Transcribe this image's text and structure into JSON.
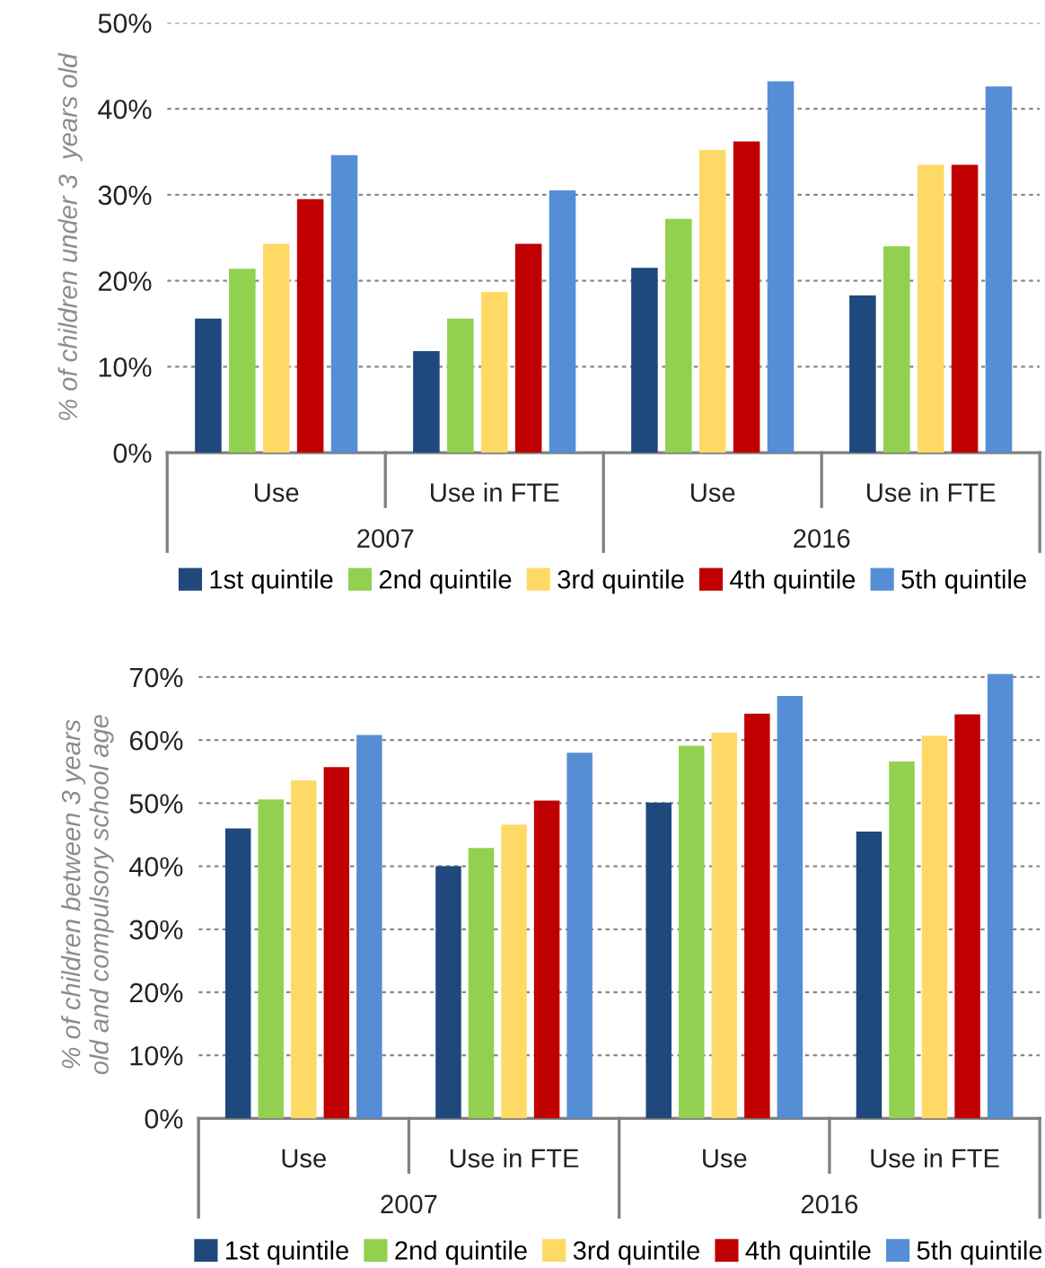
{
  "chart_data": [
    {
      "type": "bar",
      "ylabel": "% of children under 3  years old",
      "categories": [
        "Use",
        "Use in FTE",
        "Use",
        "Use in FTE"
      ],
      "annotations": [
        "2007",
        "2016"
      ],
      "series": [
        {
          "name": "1st quintile",
          "color": "#1f497d",
          "values": [
            15.6,
            11.8,
            21.5,
            18.3
          ]
        },
        {
          "name": "2nd quintile",
          "color": "#92d050",
          "values": [
            21.4,
            15.6,
            27.2,
            24.0
          ]
        },
        {
          "name": "3rd quintile",
          "color": "#ffd966",
          "values": [
            24.3,
            18.7,
            35.2,
            33.5
          ]
        },
        {
          "name": "4th quintile",
          "color": "#c00000",
          "values": [
            29.5,
            24.3,
            36.2,
            33.5
          ]
        },
        {
          "name": "5th quintile",
          "color": "#558ed5",
          "values": [
            34.6,
            30.5,
            43.2,
            42.6
          ]
        }
      ],
      "ylim": [
        0,
        50
      ],
      "yticks": [
        {
          "value": 0,
          "label": "0%"
        },
        {
          "value": 10,
          "label": "10%"
        },
        {
          "value": 20,
          "label": "20%"
        },
        {
          "value": 30,
          "label": "30%"
        },
        {
          "value": 40,
          "label": "40%"
        },
        {
          "value": 50,
          "label": "50%"
        }
      ],
      "grid": "y",
      "legend": "bottom"
    },
    {
      "type": "bar",
      "ylabel": "% of children between 3 years old and compulsory school age",
      "categories": [
        "Use",
        "Use in FTE",
        "Use",
        "Use in FTE"
      ],
      "annotations": [
        "2007",
        "2016"
      ],
      "series": [
        {
          "name": "1st quintile",
          "color": "#1f497d",
          "values": [
            46.0,
            40.0,
            50.1,
            45.5
          ]
        },
        {
          "name": "2nd quintile",
          "color": "#92d050",
          "values": [
            50.6,
            42.9,
            59.1,
            56.6
          ]
        },
        {
          "name": "3rd quintile",
          "color": "#ffd966",
          "values": [
            53.6,
            46.6,
            61.2,
            60.7
          ]
        },
        {
          "name": "4th quintile",
          "color": "#c00000",
          "values": [
            55.7,
            50.4,
            64.2,
            64.1
          ]
        },
        {
          "name": "5th quintile",
          "color": "#558ed5",
          "values": [
            60.8,
            58.0,
            67.0,
            70.5
          ]
        }
      ],
      "ylim": [
        0,
        71
      ],
      "yticks": [
        {
          "value": 0,
          "label": "0%"
        },
        {
          "value": 10,
          "label": "10%"
        },
        {
          "value": 20,
          "label": "20%"
        },
        {
          "value": 30,
          "label": "30%"
        },
        {
          "value": 40,
          "label": "40%"
        },
        {
          "value": 50,
          "label": "50%"
        },
        {
          "value": 60,
          "label": "60%"
        },
        {
          "value": 70,
          "label": "70%"
        }
      ],
      "grid": "y",
      "legend": "bottom"
    }
  ]
}
